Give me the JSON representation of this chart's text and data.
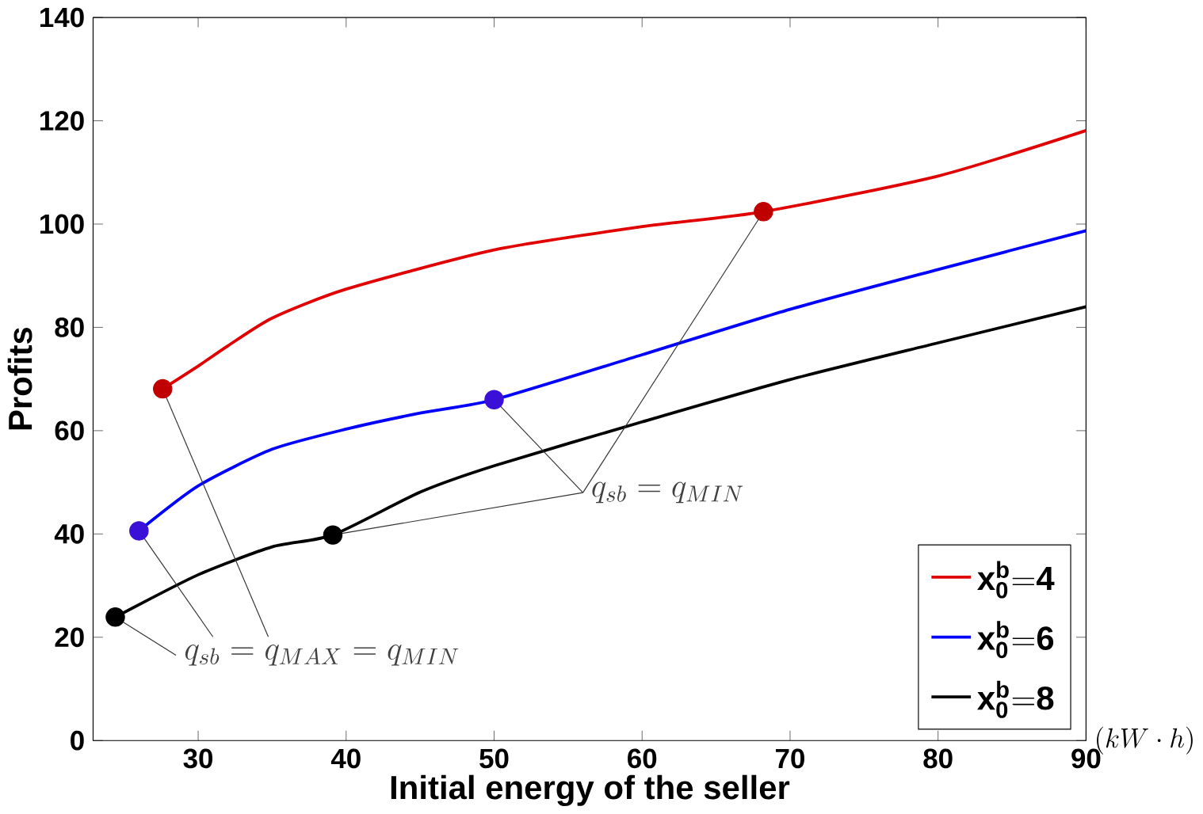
{
  "chart_data": {
    "type": "line",
    "xlabel": "Initial energy of the seller",
    "ylabel": "Profits",
    "xlim": [
      22.9,
      90
    ],
    "ylim": [
      0,
      140
    ],
    "xticks": [
      30,
      40,
      50,
      60,
      70,
      80,
      90
    ],
    "yticks": [
      0,
      20,
      40,
      60,
      80,
      100,
      120,
      140
    ],
    "grid": false,
    "legend": "bottom right",
    "marker": "none",
    "line_style": "solid",
    "annotations": [
      {
        "text": "q_{sb}=q_{MIN}",
        "x": 68.2,
        "y": 102.4
      },
      {
        "text": "q_{sb}=q_{MAX}=q_{MIN}",
        "x": 24.4,
        "y": 23.9
      },
      "(kW\\cdot h)"
    ],
    "series": [
      {
        "name": "\\mathbf{x_0^b{=}4}",
        "color": "#e00000",
        "x": [
          27.6,
          30,
          32,
          35,
          40,
          50,
          60,
          68.2,
          80,
          90
        ],
        "values": [
          68.1,
          72.5,
          76.4,
          81.8,
          87.4,
          95.0,
          99.5,
          102.4,
          109.3,
          118.1
        ]
      },
      {
        "name": "\\mathbf{x_0^b{=}6}",
        "color": "#0000ff",
        "x": [
          26.0,
          30,
          35,
          40,
          45,
          50,
          60,
          70,
          80,
          90
        ],
        "values": [
          40.6,
          49.3,
          56.4,
          60.3,
          63.4,
          66.0,
          74.7,
          83.5,
          91.2,
          98.7
        ]
      },
      {
        "name": "\\mathbf{x_0^b{=}8}",
        "color": "#000000",
        "x": [
          24.4,
          30,
          35,
          39.1,
          45,
          50,
          60,
          70,
          80,
          90
        ],
        "values": [
          23.9,
          32.1,
          37.5,
          39.8,
          48.1,
          53.2,
          61.7,
          69.9,
          77.0,
          84.0
        ]
      },
      {
        "type": "scatter",
        "marker": "circle",
        "color": "#c00000",
        "x": [
          27.6,
          68.2
        ],
        "values": [
          68.1,
          102.4
        ]
      },
      {
        "type": "scatter",
        "marker": "circle",
        "color": "#3a10d8",
        "x": [
          26.0,
          50
        ],
        "values": [
          40.6,
          66.0
        ]
      },
      {
        "type": "scatter",
        "marker": "circle",
        "color": "#000000",
        "x": [
          24.4,
          39.1
        ],
        "values": [
          23.9,
          39.8
        ]
      }
    ]
  }
}
